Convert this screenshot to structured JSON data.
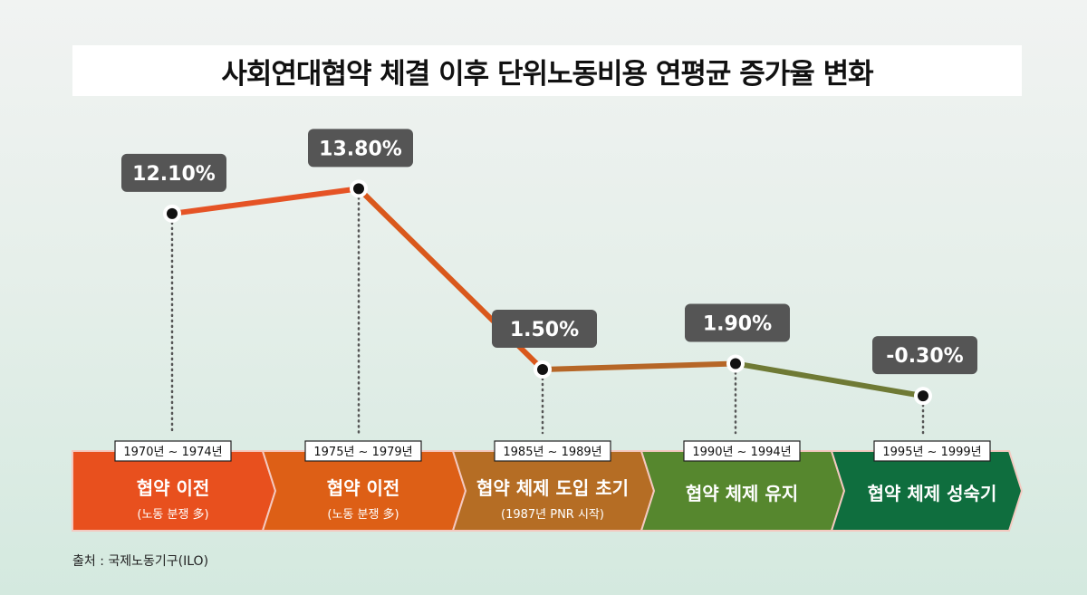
{
  "chart_data": {
    "type": "line",
    "title": "사회연대협약 체결 이후 단위노동비용 연평균 증가율 변화",
    "unit": "%",
    "x": [
      "1970년 ~ 1974년",
      "1975년 ~ 1979년",
      "1985년 ~ 1989년",
      "1990년 ~ 1994년",
      "1995년 ~ 1999년"
    ],
    "values": [
      12.1,
      13.8,
      1.5,
      1.9,
      -0.3
    ],
    "value_labels": [
      "12.10%",
      "13.80%",
      "1.50%",
      "1.90%",
      "-0.30%"
    ],
    "phases": [
      {
        "label": "협약 이전",
        "sub": "(노동 분쟁 多)",
        "color": "#e8501e"
      },
      {
        "label": "협약 이전",
        "sub": "(노동 분쟁 多)",
        "color": "#dd5f16"
      },
      {
        "label": "협약 체제 도입 초기",
        "sub": "(1987년 PNR 시작)",
        "color": "#b56d24"
      },
      {
        "label": "협약 체제 유지",
        "sub": "",
        "color": "#56872e"
      },
      {
        "label": "협약 체제 성숙기",
        "sub": "",
        "color": "#0f6e3e"
      }
    ],
    "line_colors": [
      "#e55325",
      "#d9581c",
      "#b66627",
      "#6f7a35",
      "#2e6e3b"
    ],
    "label_box_color": "#555555",
    "grid": false
  },
  "source": "출처 : 국제노동기구(ILO)"
}
